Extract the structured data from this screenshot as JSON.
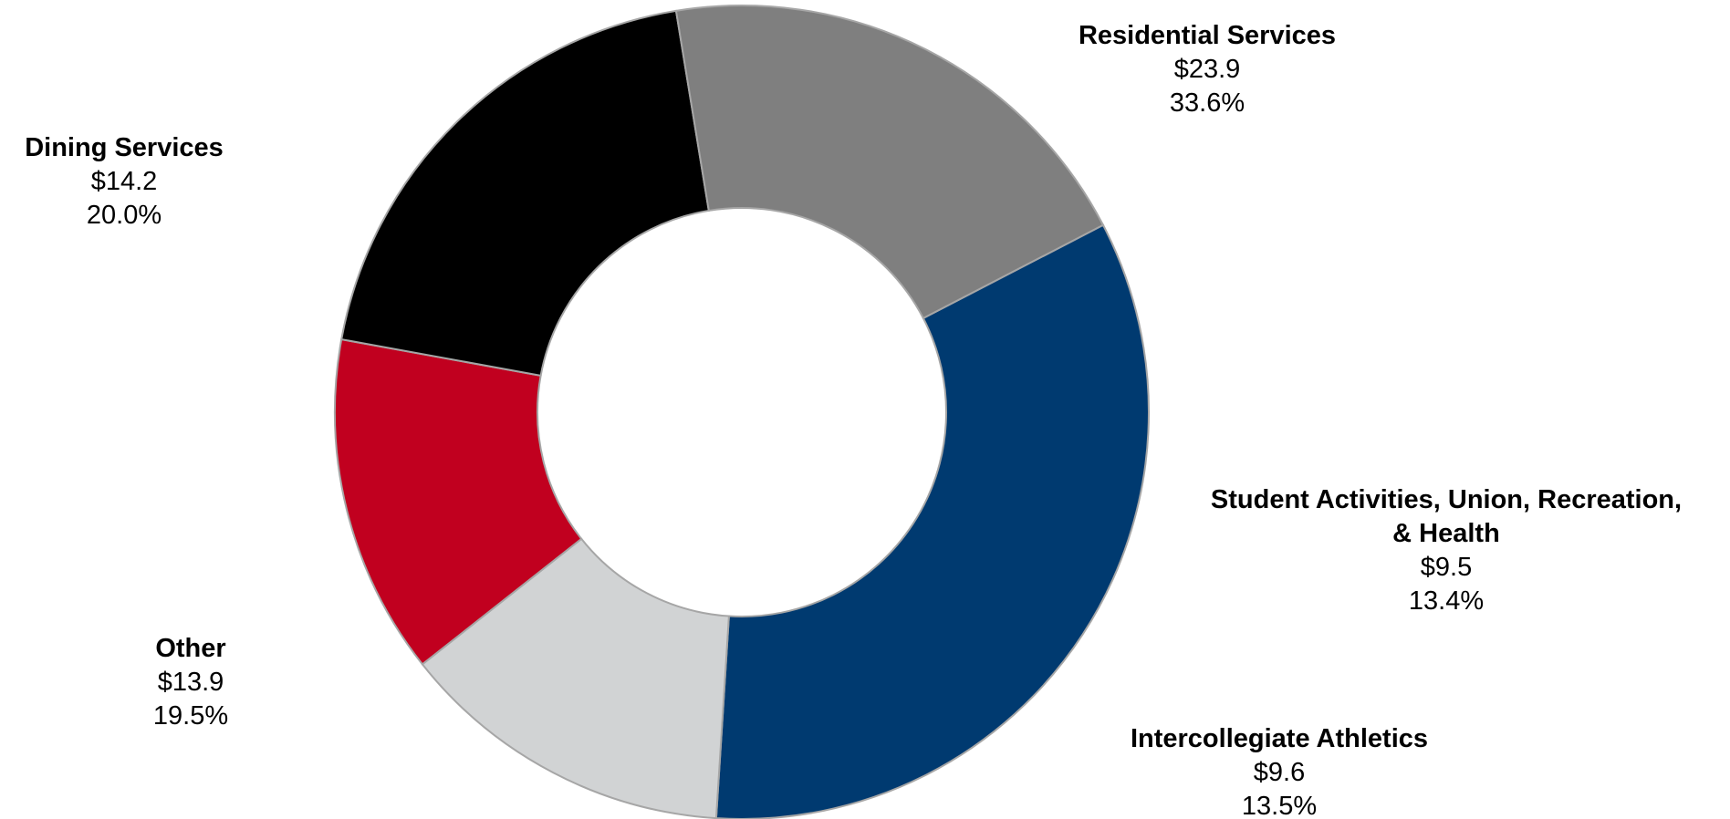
{
  "chart_data": {
    "type": "donut",
    "title": "",
    "slices": [
      {
        "label_lines": [
          "Residential Services"
        ],
        "value_label": "$23.9",
        "percent_label": "33.6%",
        "value": 23.9,
        "percent": 33.6,
        "color": "#003A70"
      },
      {
        "label_lines": [
          "Student Activities, Union, Recreation,",
          "& Health"
        ],
        "value_label": "$9.5",
        "percent_label": "13.4%",
        "value": 9.5,
        "percent": 13.4,
        "color": "#D1D3D4"
      },
      {
        "label_lines": [
          "Intercollegiate Athletics"
        ],
        "value_label": "$9.6",
        "percent_label": "13.5%",
        "value": 9.6,
        "percent": 13.5,
        "color": "#C1001F"
      },
      {
        "label_lines": [
          "Other"
        ],
        "value_label": "$13.9",
        "percent_label": "19.5%",
        "value": 13.9,
        "percent": 19.5,
        "color": "#000000"
      },
      {
        "label_lines": [
          "Dining Services"
        ],
        "value_label": "$14.2",
        "percent_label": "20.0%",
        "value": 14.2,
        "percent": 20.0,
        "color": "#7F7F7F"
      }
    ],
    "legend": "none",
    "data_labels": "outside"
  }
}
